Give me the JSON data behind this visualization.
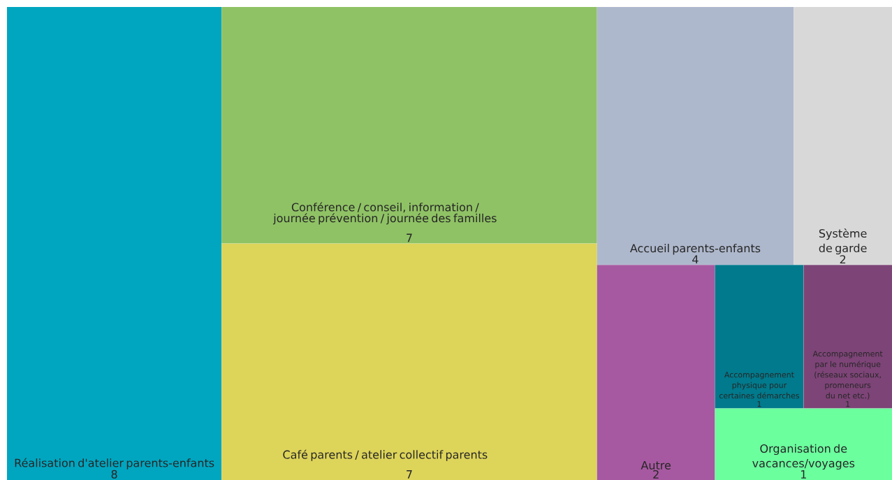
{
  "chart_data": {
    "type": "other",
    "categories": [
      "Réalisation d'atelier parents-enfants",
      "Conférence / conseil, information / journée prévention / journée des familles",
      "Café parents / atelier collectif parents",
      "Accueil parents-enfants",
      "Système de garde",
      "Autre",
      "Accompagnement physique pour certaines démarches",
      "Accompagnement par le numérique (réseaux sociaux, promeneurs du net etc.)",
      "Organisation de vacances/voyages"
    ],
    "values": [
      8,
      7,
      7,
      4,
      2,
      2,
      1,
      1,
      1
    ],
    "colors": [
      "#00a6c0",
      "#8fc265",
      "#ddd45a",
      "#aeb8cc",
      "#d8d8d8",
      "#a659a0",
      "#007a8c",
      "#7d4477",
      "#6bff9e"
    ],
    "data_labels": true
  }
}
